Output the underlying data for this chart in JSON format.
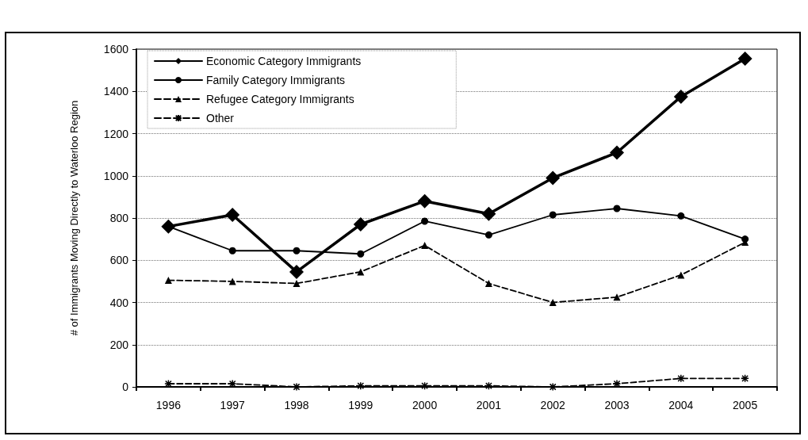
{
  "chart_data": {
    "type": "line",
    "ylabel": "# of Immigrants Moving Directly to Waterloo Region",
    "categories": [
      "1996",
      "1997",
      "1998",
      "1999",
      "2000",
      "2001",
      "2002",
      "2003",
      "2004",
      "2005"
    ],
    "series": [
      {
        "name": "Economic Category Immigrants",
        "color": "#000000",
        "marker": "diamond",
        "line_style": "solid",
        "values": [
          760,
          815,
          545,
          770,
          880,
          820,
          990,
          1110,
          1375,
          1555
        ]
      },
      {
        "name": "Family Category Immigrants",
        "color": "#000000",
        "marker": "circle",
        "line_style": "solid",
        "values": [
          760,
          645,
          645,
          630,
          785,
          720,
          815,
          845,
          810,
          700
        ]
      },
      {
        "name": "Refugee Category Immigrants",
        "color": "#000000",
        "marker": "triangle",
        "line_style": "dashed",
        "values": [
          505,
          500,
          490,
          545,
          670,
          490,
          400,
          425,
          530,
          685
        ]
      },
      {
        "name": "Other",
        "color": "#000000",
        "marker": "cross",
        "line_style": "dashed",
        "values": [
          15,
          15,
          0,
          5,
          5,
          5,
          0,
          15,
          40,
          40
        ]
      }
    ],
    "ylim": [
      0,
      1600
    ],
    "yticks": [
      0,
      200,
      400,
      600,
      800,
      1000,
      1200,
      1400,
      1600
    ],
    "grid": "y",
    "legend": "top left"
  }
}
